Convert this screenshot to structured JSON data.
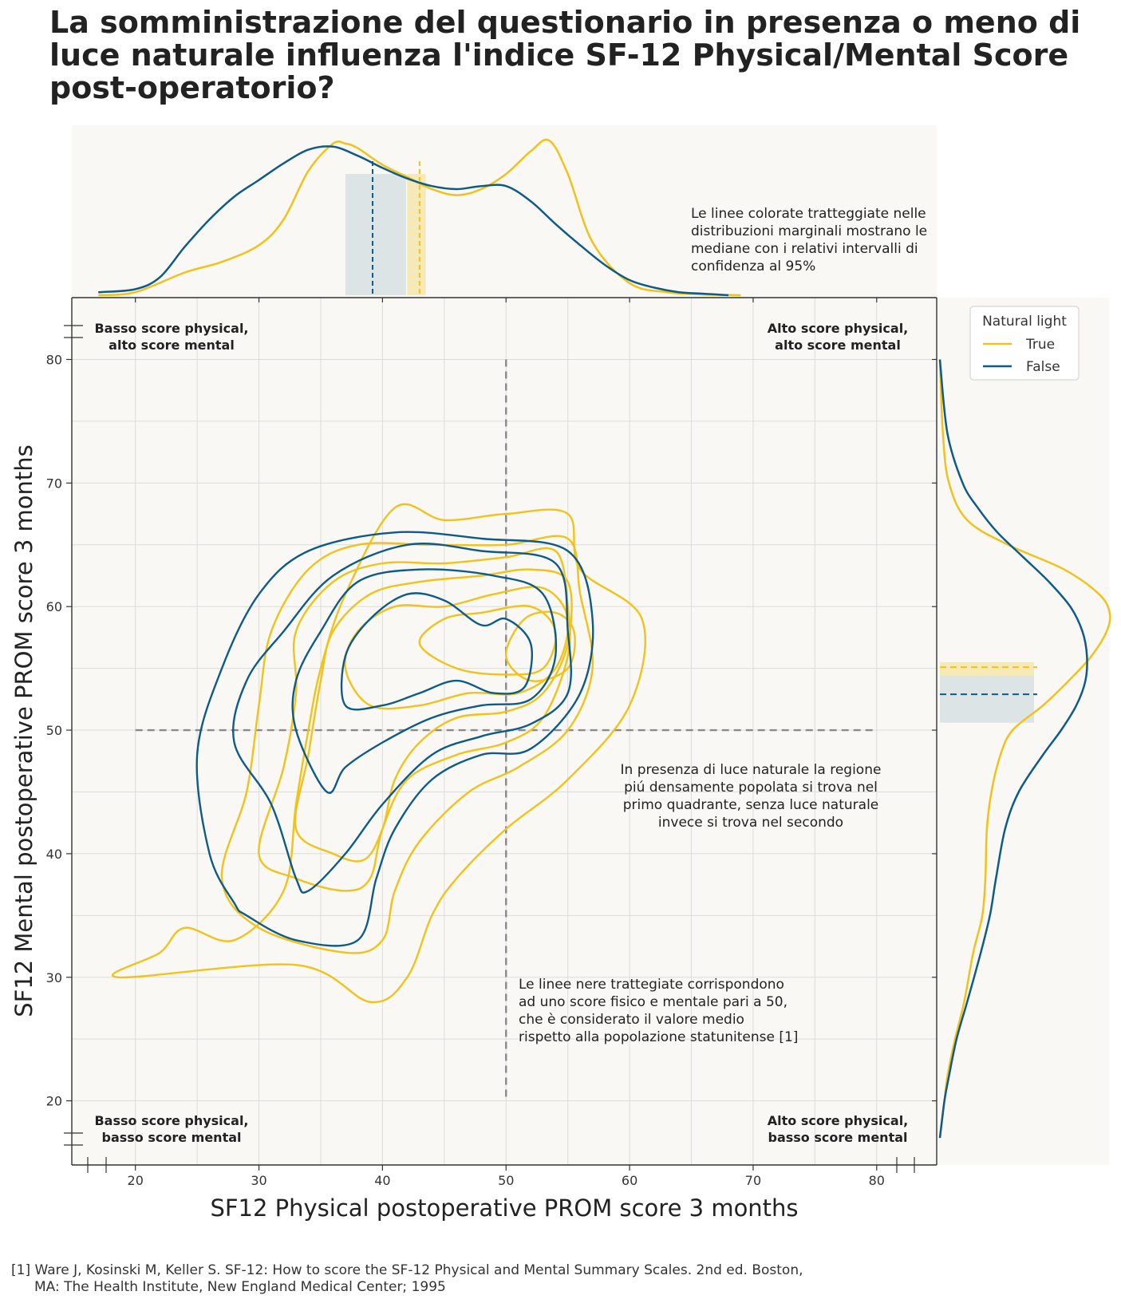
{
  "colors": {
    "true_series": "#f1c21b",
    "false_series": "#0f5b87",
    "panel_bg": "#f9f8f4",
    "grid": "#dcdcdc",
    "reference_line": "#8a8a8a"
  },
  "chart_data": {
    "type": "kde-contour-joint",
    "title": "La somministrazione del questionario in presenza o meno di luce naturale influenza l'indice SF-12 Physical/Mental Score post-operatorio?",
    "xlabel": "SF12 Physical postoperative PROM score 3 months",
    "ylabel": "SF12 Mental postoperative PROM score 3 months",
    "xlim": [
      15,
      85
    ],
    "ylim": [
      15,
      85
    ],
    "x_ticks": [
      20,
      30,
      40,
      50,
      60,
      70,
      80
    ],
    "y_ticks": [
      20,
      30,
      40,
      50,
      60,
      70,
      80
    ],
    "grid": true,
    "reference_lines": {
      "x": 50,
      "y": 50,
      "style": "dashed"
    },
    "legend": {
      "title": "Natural light",
      "placement": "top-right",
      "entries": [
        {
          "label": "True",
          "color": "#f1c21b"
        },
        {
          "label": "False",
          "color": "#0f5b87"
        }
      ]
    },
    "quadrant_labels": [
      {
        "id": "top-left",
        "lines": [
          "Basso score physical,",
          "alto score mental"
        ]
      },
      {
        "id": "top-right",
        "lines": [
          "Alto score physical,",
          "alto score mental"
        ]
      },
      {
        "id": "bottom-left",
        "lines": [
          "Basso score physical,",
          "basso score mental"
        ]
      },
      {
        "id": "bottom-right",
        "lines": [
          "Alto score physical,",
          "basso score mental"
        ]
      }
    ],
    "annotations": {
      "marginal_note": [
        "Le linee colorate tratteggiate nelle",
        "distribuzioni marginali mostrano le",
        "mediane con i relativi intervalli di",
        "confidenza al 95%"
      ],
      "region_note": [
        "In presenza di luce naturale la regione",
        "piú densamente popolata si trova nel",
        "primo quadrante, senza luce naturale",
        "invece si trova nel secondo"
      ],
      "reference_note": [
        "Le linee nere trattegiate corrispondono",
        "ad uno score fisico e mentale pari a 50,",
        "che è considerato il valore medio",
        "rispetto alla popolazione statunitense [1]"
      ]
    },
    "marginal_medians": {
      "x": [
        {
          "series": "True",
          "median": 43.0,
          "ci": [
            42.0,
            43.5
          ]
        },
        {
          "series": "False",
          "median": 39.2,
          "ci": [
            37.0,
            41.9
          ]
        }
      ],
      "y": [
        {
          "series": "True",
          "median": 55.1,
          "ci": [
            54.4,
            55.5
          ]
        },
        {
          "series": "False",
          "median": 52.9,
          "ci": [
            50.6,
            54.4
          ]
        }
      ]
    },
    "marginal_x_density": [
      {
        "series": "True",
        "x": [
          17,
          20,
          24,
          27,
          30,
          32,
          34,
          36,
          37,
          38,
          40,
          42,
          44,
          46,
          48,
          50,
          52,
          53.5,
          55,
          57,
          60,
          63,
          66,
          69
        ],
        "density": [
          0.0,
          0.02,
          0.15,
          0.22,
          0.33,
          0.5,
          0.82,
          1.0,
          1.0,
          0.97,
          0.86,
          0.78,
          0.7,
          0.66,
          0.7,
          0.8,
          0.95,
          1.02,
          0.8,
          0.35,
          0.08,
          0.02,
          0.005,
          0.0
        ]
      },
      {
        "series": "False",
        "x": [
          17,
          20,
          22,
          24,
          26,
          28,
          30,
          32,
          34,
          36,
          38,
          40,
          42,
          44,
          46,
          48,
          50,
          52,
          54,
          56,
          58,
          60,
          62,
          64,
          66,
          68
        ],
        "density": [
          0.02,
          0.04,
          0.12,
          0.32,
          0.5,
          0.65,
          0.76,
          0.87,
          0.96,
          0.98,
          0.92,
          0.84,
          0.77,
          0.72,
          0.7,
          0.72,
          0.72,
          0.62,
          0.47,
          0.33,
          0.2,
          0.1,
          0.05,
          0.02,
          0.01,
          0.0
        ]
      }
    ],
    "marginal_y_density": [
      {
        "series": "True",
        "y": [
          17,
          20,
          22,
          25,
          28,
          32,
          35,
          38,
          42,
          45,
          48,
          50,
          52,
          54,
          56,
          58,
          59.5,
          61,
          63,
          65,
          67,
          70,
          74,
          80
        ],
        "density": [
          0.0,
          0.03,
          0.05,
          0.1,
          0.16,
          0.22,
          0.28,
          0.3,
          0.31,
          0.34,
          0.4,
          0.48,
          0.68,
          0.85,
          1.0,
          1.1,
          1.12,
          1.05,
          0.82,
          0.45,
          0.18,
          0.06,
          0.02,
          0.0
        ]
      },
      {
        "series": "False",
        "y": [
          17,
          20,
          22,
          25,
          28,
          32,
          35,
          38,
          42,
          45,
          48,
          50,
          52,
          54,
          56,
          58,
          60,
          62,
          64,
          66,
          68,
          70,
          74,
          80
        ],
        "density": [
          0.0,
          0.03,
          0.06,
          0.11,
          0.18,
          0.27,
          0.33,
          0.37,
          0.43,
          0.52,
          0.68,
          0.8,
          0.9,
          0.96,
          0.97,
          0.94,
          0.86,
          0.72,
          0.55,
          0.38,
          0.25,
          0.15,
          0.05,
          0.0
        ]
      }
    ],
    "contours": [
      {
        "series": "True",
        "level": 1,
        "points": [
          [
            18.6,
            30
          ],
          [
            22,
            32
          ],
          [
            24,
            34
          ],
          [
            28,
            33
          ],
          [
            32,
            37
          ],
          [
            33,
            44
          ],
          [
            34,
            50
          ],
          [
            35,
            55
          ],
          [
            37,
            61
          ],
          [
            41,
            68
          ],
          [
            45,
            67
          ],
          [
            50,
            67.5
          ],
          [
            55,
            67.5
          ],
          [
            56,
            63
          ],
          [
            61,
            59
          ],
          [
            60,
            52
          ],
          [
            55,
            46
          ],
          [
            50,
            42
          ],
          [
            46,
            38
          ],
          [
            44,
            35
          ],
          [
            42,
            30
          ],
          [
            39,
            28
          ],
          [
            33,
            31
          ]
        ]
      },
      {
        "series": "True",
        "level": 2,
        "points": [
          [
            27,
            38
          ],
          [
            29,
            45
          ],
          [
            30,
            52
          ],
          [
            31,
            58
          ],
          [
            34,
            63
          ],
          [
            38,
            65
          ],
          [
            44,
            65
          ],
          [
            50,
            65
          ],
          [
            55,
            65.5
          ],
          [
            56,
            61
          ],
          [
            57,
            55
          ],
          [
            55,
            50
          ],
          [
            51,
            47
          ],
          [
            47,
            45
          ],
          [
            43,
            41
          ],
          [
            41,
            37
          ],
          [
            40,
            33
          ],
          [
            37,
            32
          ],
          [
            30,
            34
          ]
        ]
      },
      {
        "series": "True",
        "level": 3,
        "points": [
          [
            30,
            40
          ],
          [
            32,
            47
          ],
          [
            33,
            53
          ],
          [
            33,
            58
          ],
          [
            36,
            62
          ],
          [
            40,
            63.5
          ],
          [
            45,
            63.5
          ],
          [
            50,
            64
          ],
          [
            54,
            64.5
          ],
          [
            55,
            60
          ],
          [
            55,
            56
          ],
          [
            53,
            51
          ],
          [
            50,
            49
          ],
          [
            46,
            48
          ],
          [
            42,
            46
          ],
          [
            40,
            42
          ],
          [
            39,
            38
          ],
          [
            37,
            37
          ],
          [
            33,
            38
          ]
        ]
      },
      {
        "series": "True",
        "level": 4,
        "points": [
          [
            33,
            42
          ],
          [
            34,
            48
          ],
          [
            35,
            54
          ],
          [
            36,
            58
          ],
          [
            39,
            61
          ],
          [
            43,
            62
          ],
          [
            48,
            62.5
          ],
          [
            52,
            63
          ],
          [
            55,
            62
          ],
          [
            55,
            57
          ],
          [
            53,
            53
          ],
          [
            50,
            51.5
          ],
          [
            46,
            51
          ],
          [
            43,
            49
          ],
          [
            41,
            46
          ],
          [
            40,
            42
          ],
          [
            38.5,
            39.5
          ],
          [
            36,
            40
          ]
        ]
      },
      {
        "series": "True",
        "level": 5,
        "points": [
          [
            37,
            55
          ],
          [
            38,
            58
          ],
          [
            41,
            60
          ],
          [
            45,
            60
          ],
          [
            49,
            61
          ],
          [
            53,
            61.5
          ],
          [
            55,
            59
          ],
          [
            54,
            55
          ],
          [
            51,
            53
          ],
          [
            47,
            53
          ],
          [
            43,
            52
          ],
          [
            39,
            52
          ]
        ]
      },
      {
        "series": "True",
        "level": 6,
        "points": [
          [
            43,
            57
          ],
          [
            45,
            59
          ],
          [
            48,
            59.5
          ],
          [
            52,
            60
          ],
          [
            54,
            58
          ],
          [
            53,
            55
          ],
          [
            50,
            54.5
          ],
          [
            46,
            55
          ]
        ]
      },
      {
        "series": "True",
        "level": 7,
        "points": [
          [
            50,
            56
          ],
          [
            51.5,
            59
          ],
          [
            54,
            59.5
          ],
          [
            55.5,
            58
          ],
          [
            55,
            55
          ],
          [
            52,
            54
          ]
        ]
      },
      {
        "series": "False",
        "level": 1,
        "points": [
          [
            28,
            36
          ],
          [
            26,
            40
          ],
          [
            25,
            48
          ],
          [
            27,
            55
          ],
          [
            30,
            61
          ],
          [
            34,
            64.5
          ],
          [
            41,
            66
          ],
          [
            48,
            65.5
          ],
          [
            55,
            64.5
          ],
          [
            57,
            59
          ],
          [
            56,
            53
          ],
          [
            52,
            48.5
          ],
          [
            48,
            48
          ],
          [
            44,
            46
          ],
          [
            41,
            42
          ],
          [
            39.5,
            38
          ],
          [
            38,
            33
          ],
          [
            33,
            33
          ],
          [
            29,
            35
          ]
        ]
      },
      {
        "series": "False",
        "level": 2,
        "points": [
          [
            33,
            38
          ],
          [
            31,
            44
          ],
          [
            28,
            49
          ],
          [
            29,
            54
          ],
          [
            32,
            58
          ],
          [
            36,
            62.5
          ],
          [
            42,
            65
          ],
          [
            48,
            64.5
          ],
          [
            54,
            63.5
          ],
          [
            55,
            58
          ],
          [
            55,
            53
          ],
          [
            52,
            50.5
          ],
          [
            48,
            49.5
          ],
          [
            44,
            48
          ],
          [
            40,
            44
          ],
          [
            37,
            40
          ],
          [
            34,
            37
          ]
        ]
      },
      {
        "series": "False",
        "level": 3,
        "points": [
          [
            35.5,
            45
          ],
          [
            33,
            50
          ],
          [
            33,
            54
          ],
          [
            35,
            58
          ],
          [
            38,
            62
          ],
          [
            43,
            63
          ],
          [
            49,
            62.5
          ],
          [
            53,
            61
          ],
          [
            54,
            56
          ],
          [
            52,
            52.5
          ],
          [
            48,
            52
          ],
          [
            44,
            51
          ],
          [
            40,
            49
          ],
          [
            37,
            47
          ]
        ]
      },
      {
        "series": "False",
        "level": 4,
        "points": [
          [
            37,
            52
          ],
          [
            37,
            56
          ],
          [
            39,
            59
          ],
          [
            42,
            61
          ],
          [
            45,
            60.5
          ],
          [
            48,
            58.5
          ],
          [
            50,
            59
          ],
          [
            52,
            57
          ],
          [
            51.5,
            53.5
          ],
          [
            49,
            53
          ],
          [
            46,
            54
          ],
          [
            43,
            53
          ],
          [
            40,
            52
          ]
        ]
      }
    ]
  },
  "footnote": {
    "line1": "[1] Ware J, Kosinski M, Keller S. SF-12: How to score the SF-12 Physical and Mental Summary Scales. 2nd ed. Boston,",
    "line2": "MA: The Health Institute, New England Medical Center; 1995"
  }
}
